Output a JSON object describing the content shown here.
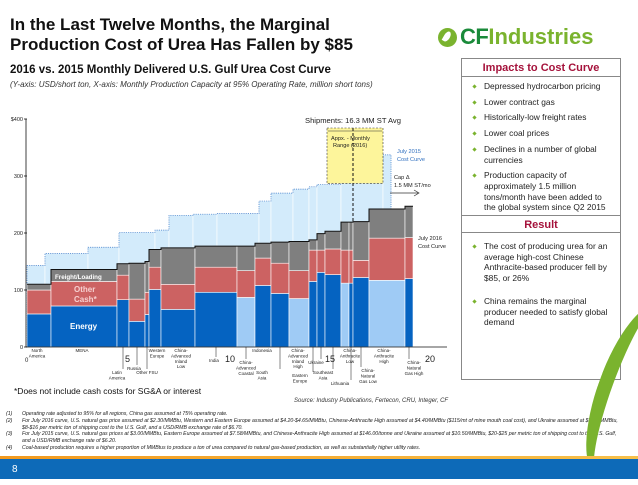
{
  "title_line1": "In the Last Twelve Months, the Marginal",
  "title_line2": "Production Cost of Urea Has Fallen by $85",
  "logo": {
    "text_cf": "CF",
    "text_rest": "Industries"
  },
  "subtitle": "2016 vs. 2015 Monthly Delivered U.S. Gulf Urea Cost Curve",
  "subnote": "(Y-axis: USD/short ton, X-axis: Monthly Production Capacity at 95% Operating Rate, million short tons)",
  "colors": {
    "energy": "#0563c1",
    "energy_china": "#9fcbf5",
    "other_cash": "#cc6262",
    "freight": "#7f7f7f",
    "curve2015_fill": "#d3ebfb",
    "curve2015_line": "#3d7cc9",
    "range_box": "#fdf59b",
    "accent_red": "#a5123b",
    "brand_green": "#7ab32e"
  },
  "chart_data": {
    "type": "bar",
    "subtype": "stacked variable-width cost curve",
    "ylim": [
      0,
      400
    ],
    "xlim": [
      0,
      21
    ],
    "y_ticks": [
      "0",
      "100",
      "200",
      "300",
      "$400"
    ],
    "x_ticks": [
      "0",
      "5",
      "10",
      "15",
      "20"
    ],
    "segments": [
      "Energy",
      "Other Cash*",
      "Freight/Loading"
    ],
    "bars": [
      {
        "region": "North America",
        "x0": 0,
        "x1": 1.2,
        "energy": 58,
        "other": 100,
        "freight": 110,
        "china": false
      },
      {
        "region": "MENA",
        "x0": 1.2,
        "x1": 4.5,
        "energy": 72,
        "other": 115,
        "freight": 136,
        "china": false
      },
      {
        "region": "Latin America",
        "x0": 4.5,
        "x1": 5.1,
        "energy": 83,
        "other": 126,
        "freight": 146,
        "china": false
      },
      {
        "region": "Russia",
        "x0": 5.1,
        "x1": 5.9,
        "energy": 45,
        "other": 84,
        "freight": 147,
        "china": false
      },
      {
        "region": "Other FSU",
        "x0": 5.9,
        "x1": 6.1,
        "energy": 57,
        "other": 96,
        "freight": 150,
        "china": false
      },
      {
        "region": "Western Europe",
        "x0": 6.1,
        "x1": 6.7,
        "energy": 101,
        "other": 140,
        "freight": 171,
        "china": false
      },
      {
        "region": "China - Advanced Inland Low",
        "x0": 6.7,
        "x1": 8.4,
        "energy": 66,
        "other": 110,
        "freight": 174,
        "china": false
      },
      {
        "region": "India",
        "x0": 8.4,
        "x1": 10.5,
        "energy": 96,
        "other": 140,
        "freight": 177,
        "china": false
      },
      {
        "region": "China - Advanced Coastal",
        "x0": 10.5,
        "x1": 11.4,
        "energy": 87,
        "other": 134,
        "freight": 177,
        "china": true
      },
      {
        "region": "Indonesia",
        "x0": 11.4,
        "x1": 12.2,
        "energy": 108,
        "other": 156,
        "freight": 182,
        "china": false
      },
      {
        "region": "South Asia",
        "x0": 12.2,
        "x1": 13.1,
        "energy": 94,
        "other": 147,
        "freight": 184,
        "china": false
      },
      {
        "region": "China - Advanced Inland High",
        "x0": 13.1,
        "x1": 14.1,
        "energy": 85,
        "other": 134,
        "freight": 185,
        "china": true
      },
      {
        "region": "Eastern Europe",
        "x0": 14.1,
        "x1": 14.5,
        "energy": 115,
        "other": 170,
        "freight": 188,
        "china": false
      },
      {
        "region": "Ukraine",
        "x0": 14.5,
        "x1": 14.9,
        "energy": 131,
        "other": 170,
        "freight": 199,
        "china": false
      },
      {
        "region": "Southeast Asia",
        "x0": 14.9,
        "x1": 15.7,
        "energy": 127,
        "other": 172,
        "freight": 203,
        "china": false
      },
      {
        "region": "China - Anthracite Low",
        "x0": 15.7,
        "x1": 16.1,
        "energy": 112,
        "other": 170,
        "freight": 219,
        "china": true
      },
      {
        "region": "Lithuania",
        "x0": 16.1,
        "x1": 16.3,
        "energy": 112,
        "other": 170,
        "freight": 219,
        "china": false
      },
      {
        "region": "China - Natural Gas Low",
        "x0": 16.3,
        "x1": 17.1,
        "energy": 122,
        "other": 152,
        "freight": 220,
        "china": false
      },
      {
        "region": "China - Anthracite High",
        "x0": 17.1,
        "x1": 18.9,
        "energy": 117,
        "other": 191,
        "freight": 242,
        "china": true
      },
      {
        "region": "China - Natural Gas High",
        "x0": 18.9,
        "x1": 19.3,
        "energy": 120,
        "other": 192,
        "freight": 247,
        "china": false
      }
    ],
    "curve_2015": [
      {
        "x0": 0,
        "x1": 0.9,
        "value": 143
      },
      {
        "x0": 0.9,
        "x1": 3.05,
        "value": 164
      },
      {
        "x0": 3.05,
        "x1": 4.6,
        "value": 175
      },
      {
        "x0": 4.6,
        "x1": 6.4,
        "value": 201
      },
      {
        "x0": 6.4,
        "x1": 7.1,
        "value": 205
      },
      {
        "x0": 7.1,
        "x1": 8.3,
        "value": 231
      },
      {
        "x0": 8.3,
        "x1": 9.5,
        "value": 233
      },
      {
        "x0": 9.5,
        "x1": 11.6,
        "value": 234
      },
      {
        "x0": 11.6,
        "x1": 12.2,
        "value": 256
      },
      {
        "x0": 12.2,
        "x1": 13.3,
        "value": 270
      },
      {
        "x0": 13.3,
        "x1": 14.1,
        "value": 277
      },
      {
        "x0": 14.1,
        "x1": 14.5,
        "value": 281
      },
      {
        "x0": 14.5,
        "x1": 15.7,
        "value": 285
      },
      {
        "x0": 15.7,
        "x1": 17.8,
        "value": 325
      },
      {
        "x0": 17.8,
        "x1": 18.2,
        "value": 337
      }
    ],
    "shipments_range": {
      "x0": 15.0,
      "x1": 17.8,
      "avg_x": 16.3
    },
    "annotations": {
      "shipments": "Shipments: 16.3 MM ST Avg",
      "range_1": "Appx. - Monthly",
      "range_2": "Range (2016)",
      "curve2015_1": "July 2015",
      "curve2015_2": "Cost Curve",
      "cap_1": "Cap Δ",
      "cap_2": "1.5 MM ST/mo",
      "curve2016_1": "July 2016",
      "curve2016_2": "Cost Curve",
      "legend_freight": "Freight/Loading",
      "legend_other_1": "Other",
      "legend_other_2": "Cash*",
      "legend_energy": "Energy"
    }
  },
  "asterisk_note": "*Does not include cash costs for SG&A or interest",
  "source": "Source: Industry Publications, Fertecon, CRU, Integer, CF",
  "footnotes": [
    {
      "n": "(1)",
      "text": "Operating rate adjusted to 95% for all regions, China gas assumed at 75% operating rate."
    },
    {
      "n": "(2)",
      "text": "For July 2016 curve, U.S. natural gas price assumed at $2.30/MMBtu, Western and Eastern Europe assumed at $4.20-$4.65/MMBtu, Chinese-Anthracite High assumed at $4.40/MMBtu ($115/mt of mine mouth coal cost), and Ukraine assumed at $5.60/MMBtu, $8-$16 per metric ton of shipping cost to the U.S. Gulf, and a USD/RMB exchange rate of $6.70."
    },
    {
      "n": "(3)",
      "text": "For July 2015 curve, U.S. natural gas prices at $3.00/MMBtu, Eastern Europe assumed at $7.58/MMBtu, and Chinese-Anthracite High assumed at $146.00/tonne and Ukraine assumed at $10.50/MMBtu, $20-$25 per metric ton of shipping cost to the U.S. Gulf, and a USD/RMB exchange rate of $6.20."
    },
    {
      "n": "(4)",
      "text": "Coal-based production requires a higher proportion of MMBtus to produce a ton of urea compared to natural gas-based production, as well as substantially higher utility rates."
    }
  ],
  "panel": {
    "impacts_title": "Impacts to Cost Curve",
    "impacts": [
      "Depressed hydrocarbon pricing",
      "Lower contract gas",
      "Historically-low freight rates",
      "Lower coal prices",
      "Declines in a number of global currencies",
      "Production capacity of approximately 1.5 million tons/month have been added to the global system since Q2 2015"
    ],
    "result_title": "Result",
    "results": [
      "The cost of producing urea for an average high-cost Chinese Anthracite-based producer fell by $85, or 26%",
      "China remains the marginal producer needed to satisfy global demand"
    ]
  },
  "page_number": "8"
}
